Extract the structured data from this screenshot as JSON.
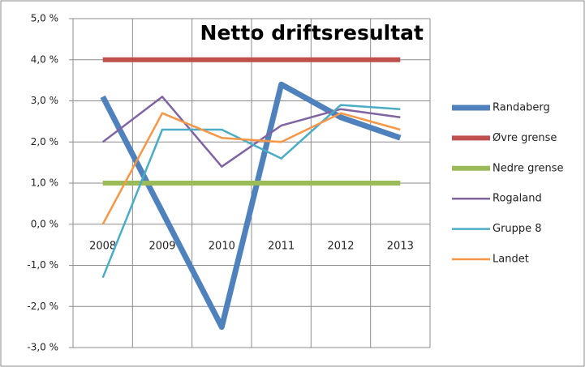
{
  "chart_data": {
    "type": "line",
    "title": "Netto driftsresultat",
    "categories": [
      "2008",
      "2009",
      "2010",
      "2011",
      "2012",
      "2013"
    ],
    "series": [
      {
        "name": "Randaberg",
        "color": "#4f81bd",
        "values": [
          3.1,
          0.3,
          -2.5,
          3.4,
          2.6,
          2.1
        ]
      },
      {
        "name": "Øvre grense",
        "color": "#c0504d",
        "values": [
          4.0,
          4.0,
          4.0,
          4.0,
          4.0,
          4.0
        ]
      },
      {
        "name": "Nedre grense",
        "color": "#9bbb59",
        "values": [
          1.0,
          1.0,
          1.0,
          1.0,
          1.0,
          1.0
        ]
      },
      {
        "name": "Rogaland",
        "color": "#8064a2",
        "values": [
          2.0,
          3.1,
          1.4,
          2.4,
          2.8,
          2.6
        ]
      },
      {
        "name": "Gruppe 8",
        "color": "#4bacc6",
        "values": [
          -1.3,
          2.3,
          2.3,
          1.6,
          2.9,
          2.8
        ]
      },
      {
        "name": "Landet",
        "color": "#f79646",
        "values": [
          0.0,
          2.7,
          2.1,
          2.0,
          2.7,
          2.3
        ]
      }
    ],
    "ylim": [
      -3,
      5
    ],
    "yticks": [
      {
        "value": 5,
        "label": "5,0 %"
      },
      {
        "value": 4,
        "label": "4,0 %"
      },
      {
        "value": 3,
        "label": "3,0 %"
      },
      {
        "value": 2,
        "label": "2,0 %"
      },
      {
        "value": 1,
        "label": "1,0 %"
      },
      {
        "value": 0,
        "label": "0,0 %"
      },
      {
        "value": -1,
        "label": "-1,0 %"
      },
      {
        "value": -2,
        "label": "-2,0 %"
      },
      {
        "value": -3,
        "label": "-3,0 %"
      }
    ],
    "grid": true,
    "legend": "right"
  }
}
